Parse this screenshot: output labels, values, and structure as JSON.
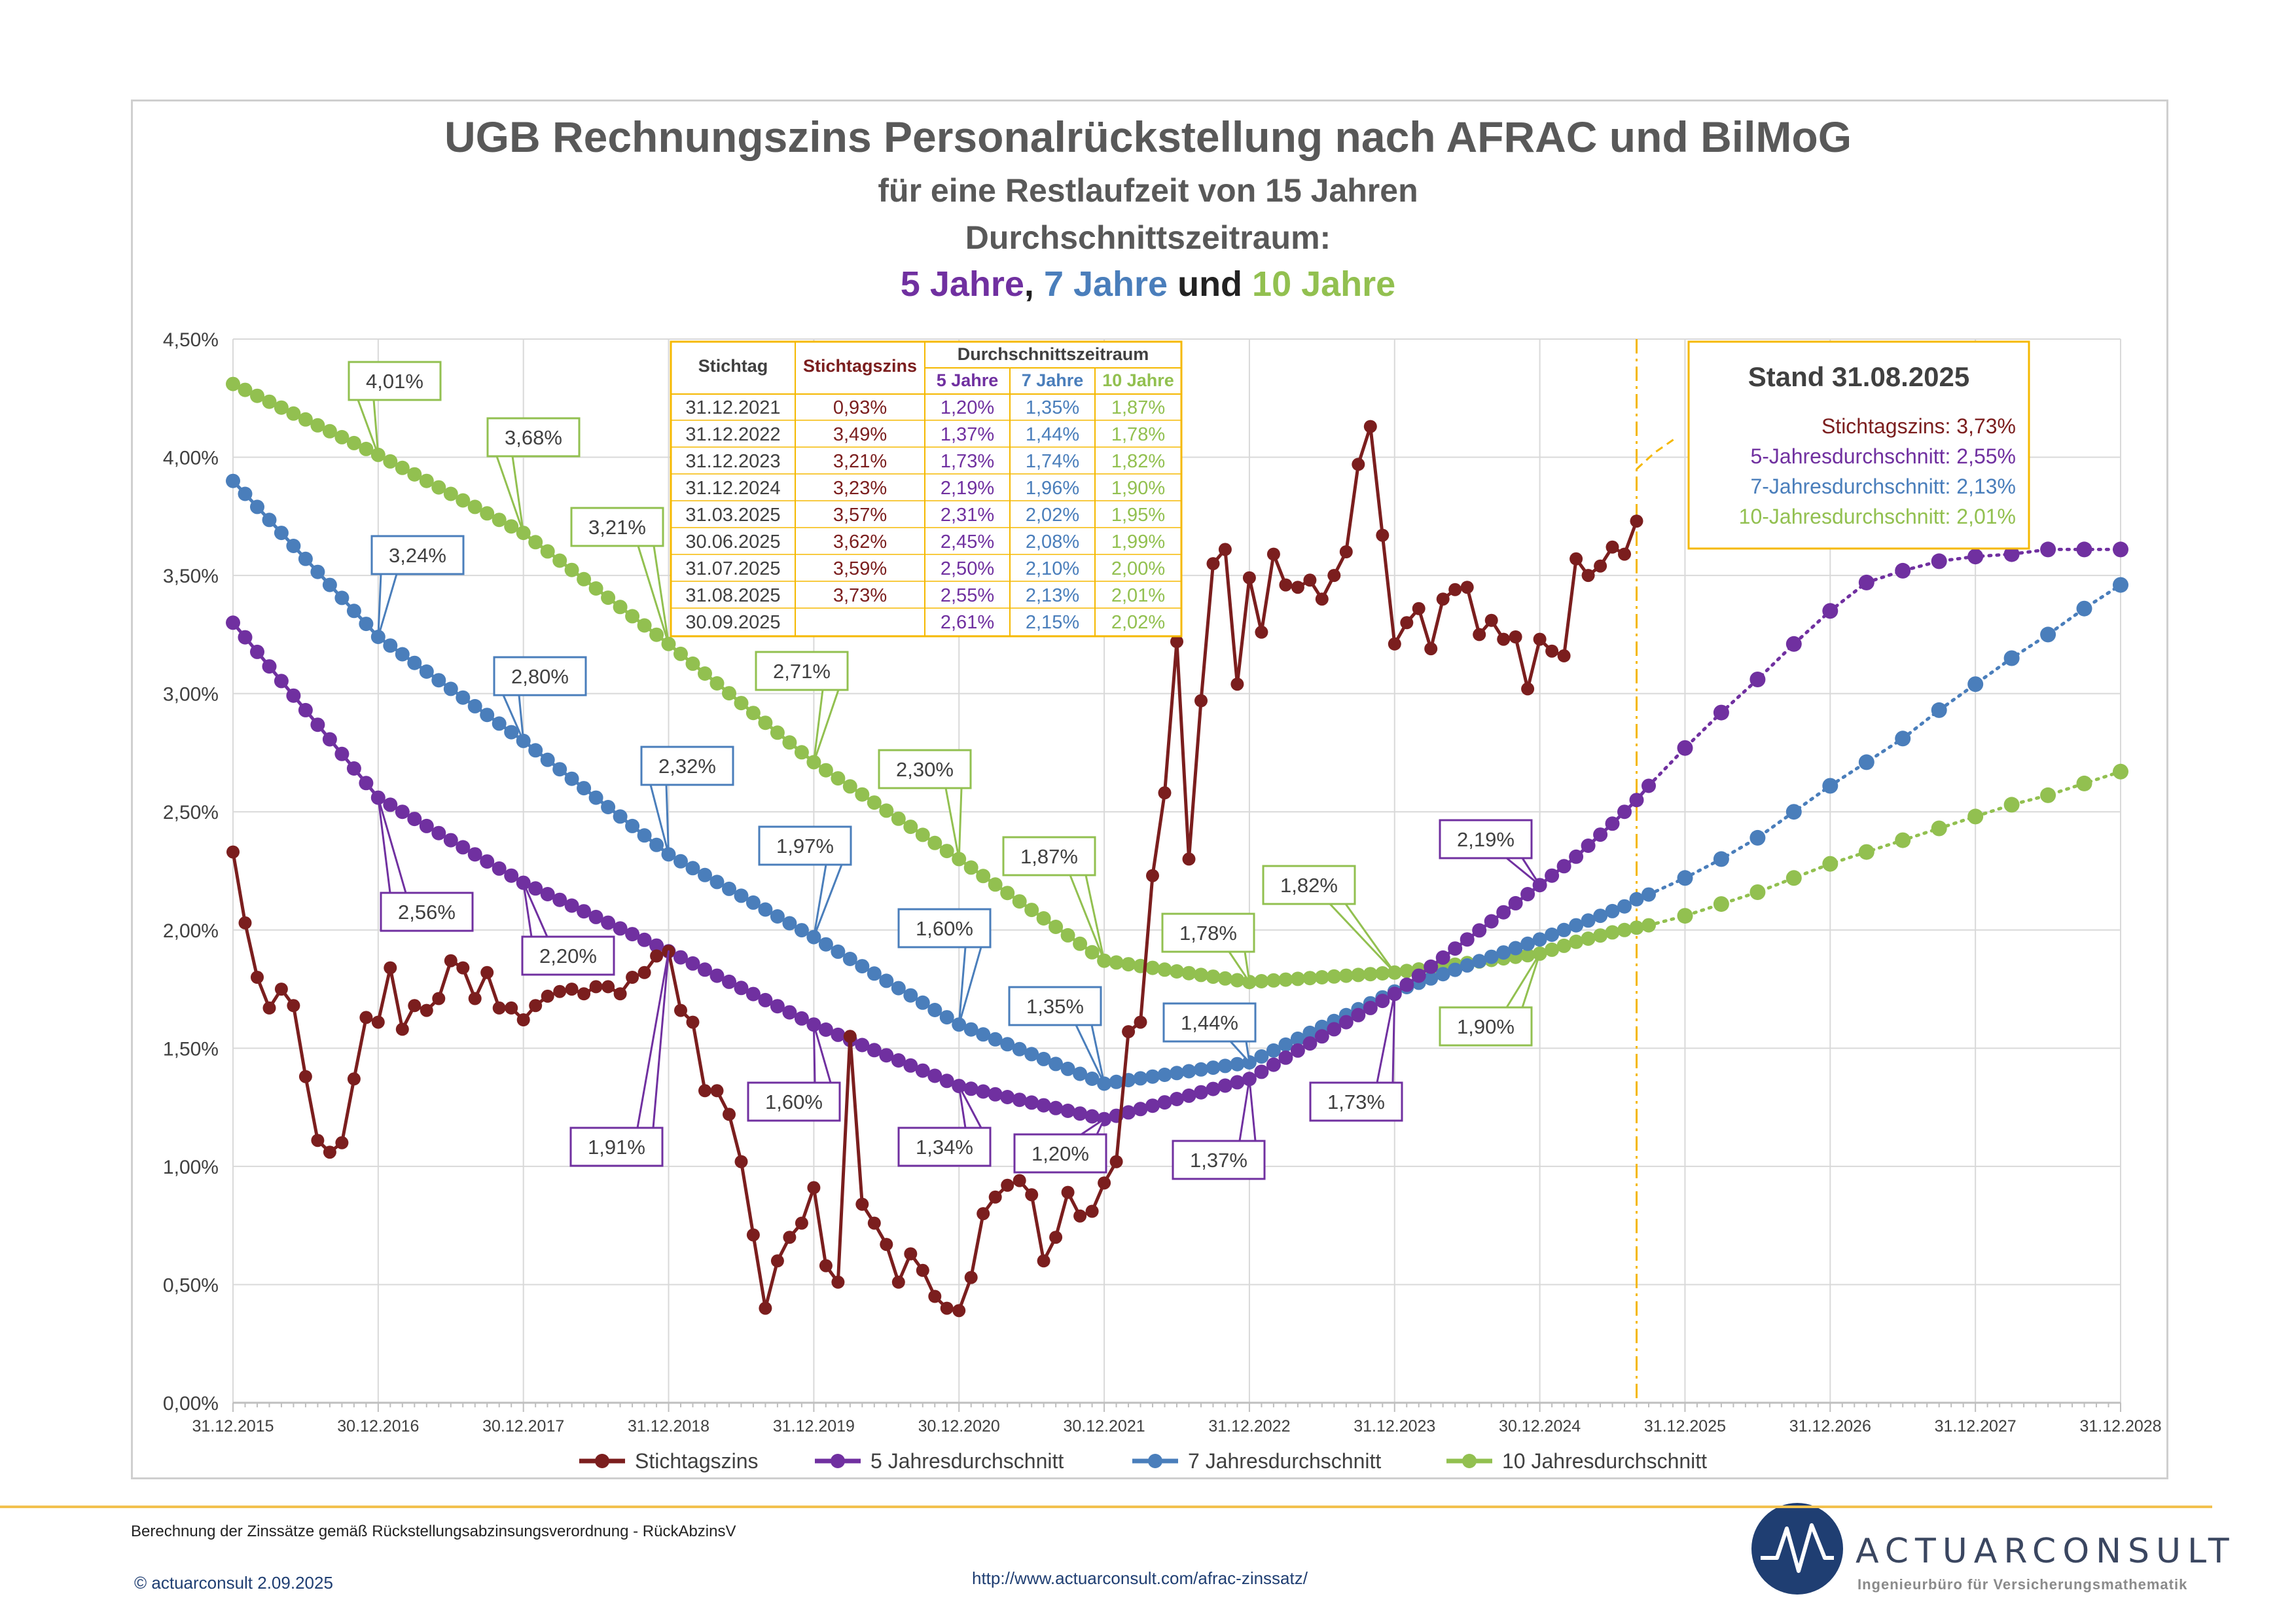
{
  "title": {
    "line1": "UGB Rechnungszins Personalrückstellung nach AFRAC und BilMoG",
    "line2": "für eine Restlaufzeit von 15 Jahren",
    "line3": "Durchschnittszeitraum:",
    "line4_a": "5 Jahre",
    "line4_b": ", ",
    "line4_c": "7 Jahre",
    "line4_d": " und ",
    "line4_e": "10 Jahre"
  },
  "colors": {
    "stichtag": "#7b1e1e",
    "avg5": "#7030a0",
    "avg7": "#4a7ebb",
    "avg10": "#92c050",
    "accent": "#f5b800",
    "grid": "#d9d9d9"
  },
  "stand_box": {
    "title": "Stand 31.08.2025",
    "lines": [
      "Stichtagszins: 3,73%",
      "5-Jahresdurchschnitt: 2,55%",
      "7-Jahresdurchschnitt: 2,13%",
      "10-Jahresdurchschnitt: 2,01%"
    ]
  },
  "table": {
    "headers": {
      "stichtag": "Stichtag",
      "zins": "Stichtagszins",
      "group": "Durchschnittszeitraum",
      "y5": "5 Jahre",
      "y7": "7 Jahre",
      "y10": "10 Jahre"
    },
    "rows": [
      [
        "31.12.2021",
        "0,93%",
        "1,20%",
        "1,35%",
        "1,87%"
      ],
      [
        "31.12.2022",
        "3,49%",
        "1,37%",
        "1,44%",
        "1,78%"
      ],
      [
        "31.12.2023",
        "3,21%",
        "1,73%",
        "1,74%",
        "1,82%"
      ],
      [
        "31.12.2024",
        "3,23%",
        "2,19%",
        "1,96%",
        "1,90%"
      ],
      [
        "31.03.2025",
        "3,57%",
        "2,31%",
        "2,02%",
        "1,95%"
      ],
      [
        "30.06.2025",
        "3,62%",
        "2,45%",
        "2,08%",
        "1,99%"
      ],
      [
        "31.07.2025",
        "3,59%",
        "2,50%",
        "2,10%",
        "2,00%"
      ],
      [
        "31.08.2025",
        "3,73%",
        "2,55%",
        "2,13%",
        "2,01%"
      ],
      [
        "30.09.2025",
        "",
        "2,61%",
        "2,15%",
        "2,02%"
      ]
    ]
  },
  "callouts": {
    "avg10": [
      "4,01%",
      "3,68%",
      "3,21%",
      "2,71%",
      "2,30%",
      "1,87%",
      "1,78%",
      "1,82%",
      "1,90%"
    ],
    "avg7": [
      "3,24%",
      "2,80%",
      "2,32%",
      "1,97%",
      "1,60%",
      "1,35%",
      "1,44%"
    ],
    "avg5": [
      "2,56%",
      "2,20%",
      "1,91%",
      "1,60%",
      "1,34%",
      "1,20%",
      "1,37%",
      "1,73%",
      "2,19%"
    ]
  },
  "chart_data": {
    "type": "line",
    "title": "UGB Rechnungszins Personalrückstellung nach AFRAC und BilMoG",
    "xlabel": "",
    "ylabel": "",
    "x_range_months": [
      0,
      156
    ],
    "ylim": [
      0,
      4.5
    ],
    "y_ticks": [
      "0,00%",
      "0,50%",
      "1,00%",
      "1,50%",
      "2,00%",
      "2,50%",
      "3,00%",
      "3,50%",
      "4,00%",
      "4,50%"
    ],
    "x_tick_labels": [
      "31.12.2015",
      "30.12.2016",
      "30.12.2017",
      "31.12.2018",
      "31.12.2019",
      "30.12.2020",
      "30.12.2021",
      "31.12.2022",
      "31.12.2023",
      "30.12.2024",
      "31.12.2025",
      "31.12.2026",
      "31.12.2027",
      "31.12.2028"
    ],
    "current_month": 116,
    "legend": [
      "Stichtagszins",
      "5 Jahresdurchschnitt",
      "7 Jahresdurchschnitt",
      "10 Jahresdurchschnitt"
    ],
    "series": [
      {
        "name": "Stichtagszins",
        "key": "stichtag",
        "points": [
          [
            0,
            2.33
          ],
          [
            1,
            2.03
          ],
          [
            2,
            1.8
          ],
          [
            3,
            1.67
          ],
          [
            4,
            1.75
          ],
          [
            5,
            1.68
          ],
          [
            6,
            1.38
          ],
          [
            7,
            1.11
          ],
          [
            8,
            1.06
          ],
          [
            9,
            1.1
          ],
          [
            10,
            1.37
          ],
          [
            11,
            1.63
          ],
          [
            12,
            1.61
          ],
          [
            13,
            1.84
          ],
          [
            14,
            1.58
          ],
          [
            15,
            1.68
          ],
          [
            16,
            1.66
          ],
          [
            17,
            1.71
          ],
          [
            18,
            1.87
          ],
          [
            19,
            1.84
          ],
          [
            20,
            1.71
          ],
          [
            21,
            1.82
          ],
          [
            22,
            1.67
          ],
          [
            23,
            1.67
          ],
          [
            24,
            1.62
          ],
          [
            25,
            1.68
          ],
          [
            26,
            1.72
          ],
          [
            27,
            1.74
          ],
          [
            28,
            1.75
          ],
          [
            29,
            1.73
          ],
          [
            30,
            1.76
          ],
          [
            31,
            1.76
          ],
          [
            32,
            1.73
          ],
          [
            33,
            1.8
          ],
          [
            34,
            1.82
          ],
          [
            35,
            1.89
          ],
          [
            36,
            1.91
          ],
          [
            37,
            1.66
          ],
          [
            38,
            1.61
          ],
          [
            39,
            1.32
          ],
          [
            40,
            1.32
          ],
          [
            41,
            1.22
          ],
          [
            42,
            1.02
          ],
          [
            43,
            0.71
          ],
          [
            44,
            0.4
          ],
          [
            45,
            0.6
          ],
          [
            46,
            0.7
          ],
          [
            47,
            0.76
          ],
          [
            48,
            0.91
          ],
          [
            49,
            0.58
          ],
          [
            50,
            0.51
          ],
          [
            51,
            1.55
          ],
          [
            52,
            0.84
          ],
          [
            53,
            0.76
          ],
          [
            54,
            0.67
          ],
          [
            55,
            0.51
          ],
          [
            56,
            0.63
          ],
          [
            57,
            0.56
          ],
          [
            58,
            0.45
          ],
          [
            59,
            0.4
          ],
          [
            60,
            0.39
          ],
          [
            61,
            0.53
          ],
          [
            62,
            0.8
          ],
          [
            63,
            0.87
          ],
          [
            64,
            0.92
          ],
          [
            65,
            0.94
          ],
          [
            66,
            0.88
          ],
          [
            67,
            0.6
          ],
          [
            68,
            0.7
          ],
          [
            69,
            0.89
          ],
          [
            70,
            0.79
          ],
          [
            71,
            0.81
          ],
          [
            72,
            0.93
          ],
          [
            73,
            1.02
          ],
          [
            74,
            1.57
          ],
          [
            75,
            1.61
          ],
          [
            76,
            2.23
          ],
          [
            77,
            2.58
          ],
          [
            78,
            3.22
          ],
          [
            79,
            2.3
          ],
          [
            80,
            2.97
          ],
          [
            81,
            3.55
          ],
          [
            82,
            3.61
          ],
          [
            83,
            3.04
          ],
          [
            84,
            3.49
          ],
          [
            85,
            3.26
          ],
          [
            86,
            3.59
          ],
          [
            87,
            3.46
          ],
          [
            88,
            3.45
          ],
          [
            89,
            3.48
          ],
          [
            90,
            3.4
          ],
          [
            91,
            3.5
          ],
          [
            92,
            3.6
          ],
          [
            93,
            3.97
          ],
          [
            94,
            4.13
          ],
          [
            95,
            3.67
          ],
          [
            96,
            3.21
          ],
          [
            97,
            3.3
          ],
          [
            98,
            3.36
          ],
          [
            99,
            3.19
          ],
          [
            100,
            3.4
          ],
          [
            101,
            3.44
          ],
          [
            102,
            3.45
          ],
          [
            103,
            3.25
          ],
          [
            104,
            3.31
          ],
          [
            105,
            3.23
          ],
          [
            106,
            3.24
          ],
          [
            107,
            3.02
          ],
          [
            108,
            3.23
          ],
          [
            109,
            3.18
          ],
          [
            110,
            3.16
          ],
          [
            111,
            3.57
          ],
          [
            112,
            3.5
          ],
          [
            113,
            3.54
          ],
          [
            114,
            3.62
          ],
          [
            115,
            3.59
          ],
          [
            116,
            3.73
          ]
        ]
      },
      {
        "name": "5 Jahresdurchschnitt",
        "key": "avg5",
        "knots": [
          [
            0,
            3.3
          ],
          [
            12,
            2.56
          ],
          [
            24,
            2.2
          ],
          [
            36,
            1.91
          ],
          [
            48,
            1.6
          ],
          [
            60,
            1.34
          ],
          [
            72,
            1.2
          ],
          [
            84,
            1.37
          ],
          [
            96,
            1.73
          ],
          [
            108,
            2.19
          ],
          [
            111,
            2.31
          ],
          [
            114,
            2.45
          ],
          [
            115,
            2.5
          ],
          [
            116,
            2.55
          ],
          [
            117,
            2.61
          ]
        ],
        "forecast": [
          [
            117,
            2.61
          ],
          [
            120,
            2.77
          ],
          [
            123,
            2.92
          ],
          [
            126,
            3.06
          ],
          [
            129,
            3.21
          ],
          [
            132,
            3.35
          ],
          [
            135,
            3.47
          ],
          [
            138,
            3.52
          ],
          [
            141,
            3.56
          ],
          [
            144,
            3.58
          ],
          [
            147,
            3.59
          ],
          [
            150,
            3.61
          ],
          [
            153,
            3.61
          ],
          [
            156,
            3.61
          ]
        ]
      },
      {
        "name": "7 Jahresdurchschnitt",
        "key": "avg7",
        "knots": [
          [
            0,
            3.9
          ],
          [
            12,
            3.24
          ],
          [
            24,
            2.8
          ],
          [
            36,
            2.32
          ],
          [
            48,
            1.97
          ],
          [
            60,
            1.6
          ],
          [
            72,
            1.35
          ],
          [
            84,
            1.44
          ],
          [
            96,
            1.74
          ],
          [
            108,
            1.96
          ],
          [
            111,
            2.02
          ],
          [
            114,
            2.08
          ],
          [
            115,
            2.1
          ],
          [
            116,
            2.13
          ],
          [
            117,
            2.15
          ]
        ],
        "forecast": [
          [
            117,
            2.15
          ],
          [
            120,
            2.22
          ],
          [
            123,
            2.3
          ],
          [
            126,
            2.39
          ],
          [
            129,
            2.5
          ],
          [
            132,
            2.61
          ],
          [
            135,
            2.71
          ],
          [
            138,
            2.81
          ],
          [
            141,
            2.93
          ],
          [
            144,
            3.04
          ],
          [
            147,
            3.15
          ],
          [
            150,
            3.25
          ],
          [
            153,
            3.36
          ],
          [
            156,
            3.46
          ]
        ]
      },
      {
        "name": "10 Jahresdurchschnitt",
        "key": "avg10",
        "knots": [
          [
            0,
            4.31
          ],
          [
            12,
            4.01
          ],
          [
            24,
            3.68
          ],
          [
            36,
            3.21
          ],
          [
            48,
            2.71
          ],
          [
            60,
            2.3
          ],
          [
            72,
            1.87
          ],
          [
            84,
            1.78
          ],
          [
            96,
            1.82
          ],
          [
            108,
            1.9
          ],
          [
            111,
            1.95
          ],
          [
            114,
            1.99
          ],
          [
            115,
            2.0
          ],
          [
            116,
            2.01
          ],
          [
            117,
            2.02
          ]
        ],
        "forecast": [
          [
            117,
            2.02
          ],
          [
            120,
            2.06
          ],
          [
            123,
            2.11
          ],
          [
            126,
            2.16
          ],
          [
            129,
            2.22
          ],
          [
            132,
            2.28
          ],
          [
            135,
            2.33
          ],
          [
            138,
            2.38
          ],
          [
            141,
            2.43
          ],
          [
            144,
            2.48
          ],
          [
            147,
            2.53
          ],
          [
            150,
            2.57
          ],
          [
            153,
            2.62
          ],
          [
            156,
            2.67
          ]
        ]
      }
    ]
  },
  "footer": {
    "note": "Berechnung der Zinssätze gemäß Rückstellungsabzinsungsverordnung - RückAbzinsV",
    "copyright": "© actuarconsult 2.09.2025",
    "url": "http://www.actuarconsult.com/afrac-zinssatz/",
    "logo_name": "ACTUARCONSULT",
    "logo_sub": "Ingenieurbüro für Versicherungsmathematik"
  }
}
